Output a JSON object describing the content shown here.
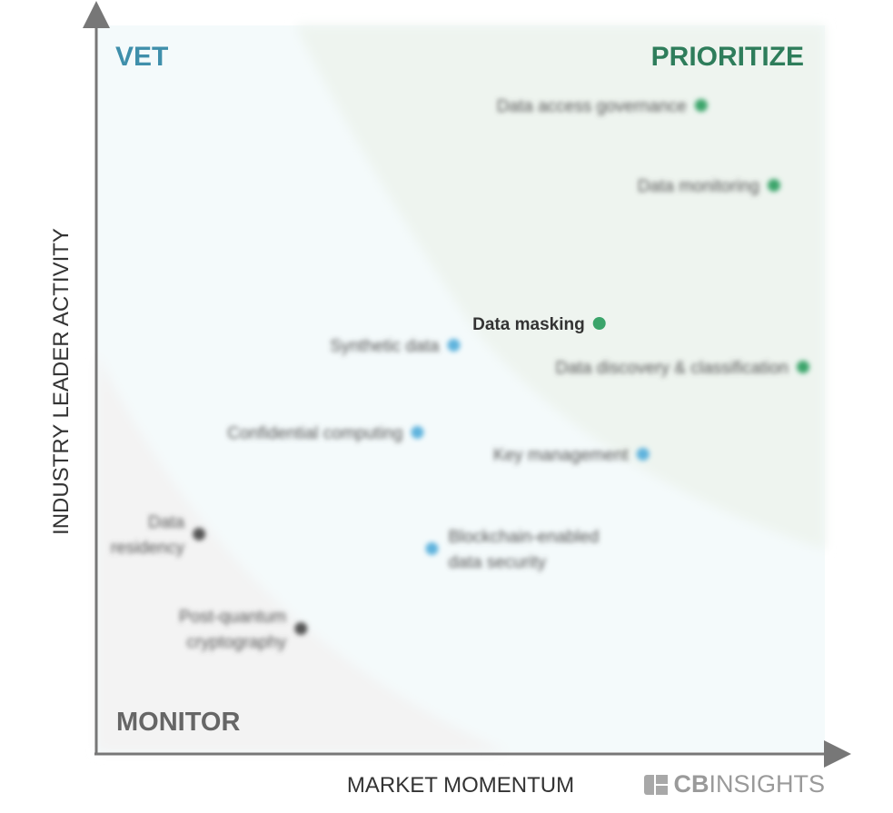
{
  "chart_data": {
    "type": "scatter",
    "title": "",
    "xlabel": "MARKET MOMENTUM",
    "ylabel": "INDUSTRY LEADER ACTIVITY",
    "quadrants": {
      "top_left": "VET",
      "top_right": "PRIORITIZE",
      "bottom_left": "MONITOR"
    },
    "points": [
      {
        "label": "Data access governance",
        "x": 0.83,
        "y": 0.89,
        "category": "prioritize",
        "blurred": true
      },
      {
        "label": "Data monitoring",
        "x": 0.93,
        "y": 0.78,
        "category": "prioritize",
        "blurred": true
      },
      {
        "label": "Data masking",
        "x": 0.69,
        "y": 0.59,
        "category": "prioritize",
        "blurred": false
      },
      {
        "label": "Synthetic data",
        "x": 0.49,
        "y": 0.56,
        "category": "vet",
        "blurred": true
      },
      {
        "label": "Data discovery & classification",
        "x": 0.97,
        "y": 0.53,
        "category": "prioritize",
        "blurred": true
      },
      {
        "label": "Confidential computing",
        "x": 0.44,
        "y": 0.44,
        "category": "vet",
        "blurred": true
      },
      {
        "label": "Key management",
        "x": 0.75,
        "y": 0.41,
        "category": "vet",
        "blurred": true
      },
      {
        "label": "Data residency",
        "x": 0.14,
        "y": 0.3,
        "category": "monitor",
        "blurred": true
      },
      {
        "label": "Blockchain-enabled data security",
        "x": 0.46,
        "y": 0.28,
        "category": "vet",
        "blurred": true
      },
      {
        "label": "Post-quantum cryptography",
        "x": 0.28,
        "y": 0.17,
        "category": "monitor",
        "blurred": true
      }
    ],
    "grid": false
  },
  "colors": {
    "prioritize": "#3aa46a",
    "vet": "#5fb3dd",
    "monitor": "#555555",
    "vet_label": "#3f8fab",
    "prioritize_label": "#2e7d5b",
    "monitor_label": "#666666"
  },
  "brand": {
    "logo_icon": "cb-logo-icon",
    "bold": "CB",
    "light": "INSIGHTS"
  }
}
